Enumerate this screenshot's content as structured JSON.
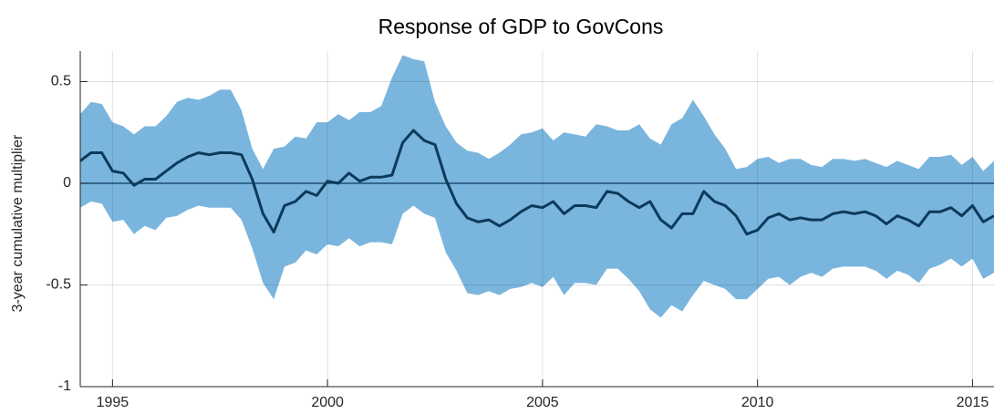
{
  "chart_data": {
    "type": "line",
    "title": "Response of GDP to GovCons",
    "y_label": "3-year cumulative multiplier",
    "xlim": [
      1994.25,
      2015.5
    ],
    "xticks": [
      1995,
      2000,
      2005,
      2010,
      2015
    ],
    "ylim": [
      -1,
      0.65
    ],
    "yticks": [
      -1,
      -0.5,
      0,
      0.5
    ],
    "grid": true,
    "x": [
      1994.25,
      1994.5,
      1994.75,
      1995,
      1995.25,
      1995.5,
      1995.75,
      1996,
      1996.25,
      1996.5,
      1996.75,
      1997,
      1997.25,
      1997.5,
      1997.75,
      1998,
      1998.25,
      1998.5,
      1998.75,
      1999,
      1999.25,
      1999.5,
      1999.75,
      2000,
      2000.25,
      2000.5,
      2000.75,
      2001,
      2001.25,
      2001.5,
      2001.75,
      2002,
      2002.25,
      2002.5,
      2002.75,
      2003,
      2003.25,
      2003.5,
      2003.75,
      2004,
      2004.25,
      2004.5,
      2004.75,
      2005,
      2005.25,
      2005.5,
      2005.75,
      2006,
      2006.25,
      2006.5,
      2006.75,
      2007,
      2007.25,
      2007.5,
      2007.75,
      2008,
      2008.25,
      2008.5,
      2008.75,
      2009,
      2009.25,
      2009.5,
      2009.75,
      2010,
      2010.25,
      2010.5,
      2010.75,
      2011,
      2011.25,
      2011.5,
      2011.75,
      2012,
      2012.25,
      2012.5,
      2012.75,
      2013,
      2013.25,
      2013.5,
      2013.75,
      2014,
      2014.25,
      2014.5,
      2014.75,
      2015,
      2015.25,
      2015.5
    ],
    "series": [
      {
        "color": "#0c3a5b",
        "values": [
          0.11,
          0.15,
          0.15,
          0.06,
          0.05,
          -0.01,
          0.02,
          0.02,
          0.06,
          0.1,
          0.13,
          0.15,
          0.14,
          0.15,
          0.15,
          0.14,
          0.02,
          -0.15,
          -0.24,
          -0.11,
          -0.09,
          -0.04,
          -0.06,
          0.01,
          0.0,
          0.05,
          0.01,
          0.03,
          0.03,
          0.04,
          0.2,
          0.26,
          0.21,
          0.19,
          0.02,
          -0.1,
          -0.17,
          -0.19,
          -0.18,
          -0.21,
          -0.18,
          -0.14,
          -0.11,
          -0.12,
          -0.09,
          -0.15,
          -0.11,
          -0.11,
          -0.12,
          -0.04,
          -0.05,
          -0.09,
          -0.12,
          -0.09,
          -0.18,
          -0.22,
          -0.15,
          -0.15,
          -0.04,
          -0.09,
          -0.11,
          -0.16,
          -0.25,
          -0.23,
          -0.17,
          -0.15,
          -0.18,
          -0.17,
          -0.18,
          -0.18,
          -0.15,
          -0.14,
          -0.15,
          -0.14,
          -0.16,
          -0.2,
          -0.16,
          -0.18,
          -0.21,
          -0.14,
          -0.14,
          -0.12,
          -0.16,
          -0.11,
          -0.19,
          -0.16
        ]
      }
    ],
    "band": {
      "color": "#7ab5dd",
      "upper": [
        0.34,
        0.4,
        0.39,
        0.3,
        0.28,
        0.24,
        0.28,
        0.28,
        0.33,
        0.4,
        0.42,
        0.41,
        0.43,
        0.46,
        0.46,
        0.36,
        0.17,
        0.07,
        0.17,
        0.18,
        0.23,
        0.22,
        0.3,
        0.3,
        0.34,
        0.31,
        0.35,
        0.35,
        0.38,
        0.52,
        0.63,
        0.61,
        0.6,
        0.4,
        0.28,
        0.2,
        0.16,
        0.15,
        0.12,
        0.15,
        0.19,
        0.24,
        0.25,
        0.27,
        0.21,
        0.25,
        0.24,
        0.23,
        0.29,
        0.28,
        0.26,
        0.26,
        0.29,
        0.22,
        0.19,
        0.29,
        0.32,
        0.41,
        0.33,
        0.24,
        0.17,
        0.07,
        0.08,
        0.12,
        0.13,
        0.1,
        0.12,
        0.12,
        0.09,
        0.08,
        0.12,
        0.12,
        0.11,
        0.12,
        0.1,
        0.08,
        0.11,
        0.09,
        0.07,
        0.13,
        0.13,
        0.14,
        0.09,
        0.13,
        0.06,
        0.11
      ],
      "lower": [
        -0.12,
        -0.09,
        -0.1,
        -0.19,
        -0.18,
        -0.25,
        -0.21,
        -0.23,
        -0.17,
        -0.16,
        -0.13,
        -0.11,
        -0.12,
        -0.12,
        -0.12,
        -0.18,
        -0.32,
        -0.49,
        -0.57,
        -0.41,
        -0.39,
        -0.33,
        -0.35,
        -0.3,
        -0.31,
        -0.27,
        -0.31,
        -0.29,
        -0.29,
        -0.3,
        -0.15,
        -0.11,
        -0.15,
        -0.17,
        -0.34,
        -0.43,
        -0.54,
        -0.55,
        -0.53,
        -0.55,
        -0.52,
        -0.51,
        -0.49,
        -0.51,
        -0.46,
        -0.55,
        -0.49,
        -0.49,
        -0.5,
        -0.42,
        -0.42,
        -0.47,
        -0.53,
        -0.62,
        -0.66,
        -0.6,
        -0.63,
        -0.55,
        -0.48,
        -0.5,
        -0.52,
        -0.57,
        -0.57,
        -0.52,
        -0.47,
        -0.46,
        -0.5,
        -0.46,
        -0.44,
        -0.46,
        -0.42,
        -0.41,
        -0.41,
        -0.41,
        -0.43,
        -0.47,
        -0.43,
        -0.45,
        -0.49,
        -0.42,
        -0.4,
        -0.37,
        -0.41,
        -0.37,
        -0.47,
        -0.44
      ]
    }
  }
}
